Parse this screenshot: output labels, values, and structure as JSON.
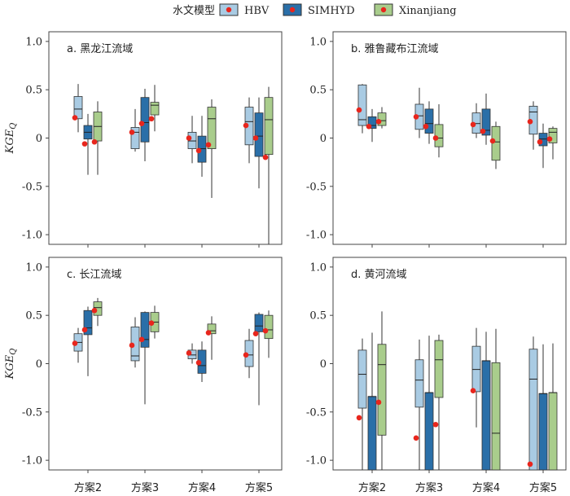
{
  "legend": {
    "title": "水文模型",
    "items": [
      {
        "name": "HBV",
        "color": "#a9cbe3"
      },
      {
        "name": "SIMHYD",
        "color": "#2a6fa8"
      },
      {
        "name": "Xinanjiang",
        "color": "#a9cd8c"
      }
    ]
  },
  "colors": {
    "mean_dot": "#e8261d",
    "frame": "#444444"
  },
  "chart_data": {
    "type": "boxplot",
    "ylabel": "KGE",
    "ylabel_sub": "Q",
    "ylim": [
      -1.1,
      1.1
    ],
    "yticks": [
      -1.0,
      -0.5,
      0,
      0.5,
      1.0
    ],
    "ytick_labels": [
      "-1.0",
      "-0.5",
      "0",
      "0.5",
      "1.0"
    ],
    "categories": [
      "方案2",
      "方案3",
      "方案4",
      "方案5"
    ],
    "series_names": [
      "HBV",
      "SIMHYD",
      "Xinanjiang"
    ],
    "panels": [
      {
        "title": "a. 黑龙江流域",
        "boxes": [
          [
            {
              "min": 0.06,
              "q1": 0.2,
              "median": 0.3,
              "q3": 0.43,
              "max": 0.56,
              "mean": 0.21
            },
            {
              "min": -0.38,
              "q1": -0.01,
              "median": 0.06,
              "q3": 0.13,
              "max": 0.25,
              "mean": -0.06
            },
            {
              "min": -0.38,
              "q1": -0.03,
              "median": 0.12,
              "q3": 0.27,
              "max": 0.38,
              "mean": -0.04
            }
          ],
          [
            {
              "min": -0.14,
              "q1": -0.11,
              "median": 0.06,
              "q3": 0.11,
              "max": 0.3,
              "mean": 0.06
            },
            {
              "min": -0.24,
              "q1": -0.04,
              "median": 0.16,
              "q3": 0.42,
              "max": 0.51,
              "mean": 0.15
            },
            {
              "min": 0.07,
              "q1": 0.24,
              "median": 0.34,
              "q3": 0.37,
              "max": 0.55,
              "mean": 0.2
            }
          ],
          [
            {
              "min": -0.26,
              "q1": -0.11,
              "median": -0.03,
              "q3": 0.06,
              "max": 0.23,
              "mean": 0.0
            },
            {
              "min": -0.4,
              "q1": -0.25,
              "median": -0.11,
              "q3": 0.02,
              "max": 0.23,
              "mean": -0.13
            },
            {
              "min": -0.62,
              "q1": -0.11,
              "median": 0.2,
              "q3": 0.32,
              "max": 0.4,
              "mean": -0.07
            }
          ],
          [
            {
              "min": -0.26,
              "q1": -0.07,
              "median": 0.17,
              "q3": 0.32,
              "max": 0.42,
              "mean": 0.13
            },
            {
              "min": -0.52,
              "q1": -0.19,
              "median": 0.02,
              "q3": 0.26,
              "max": 0.42,
              "mean": 0.0
            },
            {
              "min": -1.1,
              "q1": -0.17,
              "median": 0.19,
              "q3": 0.42,
              "max": 0.53,
              "mean": -0.2
            }
          ]
        ]
      },
      {
        "title": "b. 雅鲁藏布江流域",
        "boxes": [
          [
            {
              "min": 0.05,
              "q1": 0.13,
              "median": 0.19,
              "q3": 0.55,
              "max": 0.56,
              "mean": 0.29
            },
            {
              "min": -0.04,
              "q1": 0.1,
              "median": 0.13,
              "q3": 0.22,
              "max": 0.3,
              "mean": 0.12
            },
            {
              "min": 0.1,
              "q1": 0.13,
              "median": 0.18,
              "q3": 0.26,
              "max": 0.32,
              "mean": 0.17
            }
          ],
          [
            {
              "min": 0.0,
              "q1": 0.09,
              "median": 0.23,
              "q3": 0.35,
              "max": 0.52,
              "mean": 0.22
            },
            {
              "min": -0.06,
              "q1": 0.05,
              "median": 0.15,
              "q3": 0.3,
              "max": 0.38,
              "mean": 0.12
            },
            {
              "min": -0.2,
              "q1": -0.09,
              "median": 0.0,
              "q3": 0.14,
              "max": 0.35,
              "mean": 0.0
            }
          ],
          [
            {
              "min": 0.0,
              "q1": 0.05,
              "median": 0.15,
              "q3": 0.26,
              "max": 0.36,
              "mean": 0.14
            },
            {
              "min": -0.07,
              "q1": 0.03,
              "median": 0.08,
              "q3": 0.3,
              "max": 0.46,
              "mean": 0.07
            },
            {
              "min": -0.32,
              "q1": -0.23,
              "median": -0.04,
              "q3": 0.12,
              "max": 0.17,
              "mean": -0.03
            }
          ],
          [
            {
              "min": -0.12,
              "q1": 0.04,
              "median": 0.27,
              "q3": 0.33,
              "max": 0.38,
              "mean": 0.17
            },
            {
              "min": -0.31,
              "q1": -0.08,
              "median": -0.01,
              "q3": 0.05,
              "max": 0.15,
              "mean": -0.04
            },
            {
              "min": -0.22,
              "q1": -0.05,
              "median": 0.06,
              "q3": 0.1,
              "max": 0.12,
              "mean": -0.01
            }
          ]
        ]
      },
      {
        "title": "c. 长江流域",
        "boxes": [
          [
            {
              "min": 0.01,
              "q1": 0.13,
              "median": 0.22,
              "q3": 0.31,
              "max": 0.37,
              "mean": 0.21
            },
            {
              "min": -0.13,
              "q1": 0.3,
              "median": 0.37,
              "q3": 0.55,
              "max": 0.59,
              "mean": 0.35
            },
            {
              "min": 0.39,
              "q1": 0.5,
              "median": 0.58,
              "q3": 0.64,
              "max": 0.68,
              "mean": 0.55
            }
          ],
          [
            {
              "min": -0.04,
              "q1": 0.03,
              "median": 0.08,
              "q3": 0.38,
              "max": 0.48,
              "mean": 0.19
            },
            {
              "min": -0.42,
              "q1": 0.17,
              "median": 0.25,
              "q3": 0.53,
              "max": 0.54,
              "mean": 0.25
            },
            {
              "min": 0.26,
              "q1": 0.33,
              "median": 0.43,
              "q3": 0.53,
              "max": 0.6,
              "mean": 0.42
            }
          ],
          [
            {
              "min": 0.0,
              "q1": 0.05,
              "median": 0.09,
              "q3": 0.14,
              "max": 0.21,
              "mean": 0.11
            },
            {
              "min": -0.19,
              "q1": -0.1,
              "median": -0.02,
              "q3": 0.14,
              "max": 0.23,
              "mean": 0.01
            },
            {
              "min": 0.04,
              "q1": 0.31,
              "median": 0.34,
              "q3": 0.41,
              "max": 0.49,
              "mean": 0.32
            }
          ],
          [
            {
              "min": -0.15,
              "q1": -0.03,
              "median": 0.09,
              "q3": 0.24,
              "max": 0.36,
              "mean": 0.09
            },
            {
              "min": -0.43,
              "q1": 0.33,
              "median": 0.39,
              "q3": 0.51,
              "max": 0.53,
              "mean": 0.31
            },
            {
              "min": 0.06,
              "q1": 0.26,
              "median": 0.35,
              "q3": 0.5,
              "max": 0.55,
              "mean": 0.34
            }
          ]
        ]
      },
      {
        "title": "d. 黄河流域",
        "boxes": [
          [
            {
              "min": -1.1,
              "q1": -0.46,
              "median": -0.11,
              "q3": 0.14,
              "max": 0.26,
              "mean": -0.56
            },
            {
              "min": -1.1,
              "q1": -1.1,
              "median": -0.34,
              "q3": -0.34,
              "max": 0.32,
              "mean": -1.1
            },
            {
              "min": -1.1,
              "q1": -0.74,
              "median": -0.01,
              "q3": 0.2,
              "max": 0.54,
              "mean": -0.4
            }
          ],
          [
            {
              "min": -1.1,
              "q1": -0.45,
              "median": -0.17,
              "q3": 0.04,
              "max": 0.25,
              "mean": -0.77
            },
            {
              "min": -1.1,
              "q1": -1.1,
              "median": -0.3,
              "q3": -0.3,
              "max": 0.29,
              "mean": -1.1
            },
            {
              "min": -1.1,
              "q1": -0.35,
              "median": 0.04,
              "q3": 0.24,
              "max": 0.3,
              "mean": -0.63
            }
          ],
          [
            {
              "min": -0.66,
              "q1": -0.29,
              "median": -0.06,
              "q3": 0.18,
              "max": 0.37,
              "mean": -0.28
            },
            {
              "min": -1.1,
              "q1": -1.1,
              "median": 0.03,
              "q3": 0.03,
              "max": 0.33,
              "mean": -1.1
            },
            {
              "min": -1.1,
              "q1": -1.1,
              "median": -0.72,
              "q3": 0.01,
              "max": 0.36,
              "mean": -1.1
            }
          ],
          [
            {
              "min": -1.1,
              "q1": -1.1,
              "median": -0.16,
              "q3": 0.15,
              "max": 0.28,
              "mean": -1.04
            },
            {
              "min": -1.1,
              "q1": -1.1,
              "median": -0.31,
              "q3": -0.31,
              "max": 0.2,
              "mean": -1.1
            },
            {
              "min": -1.1,
              "q1": -1.1,
              "median": -0.3,
              "q3": -0.3,
              "max": 0.21,
              "mean": -1.1
            }
          ]
        ]
      }
    ]
  }
}
